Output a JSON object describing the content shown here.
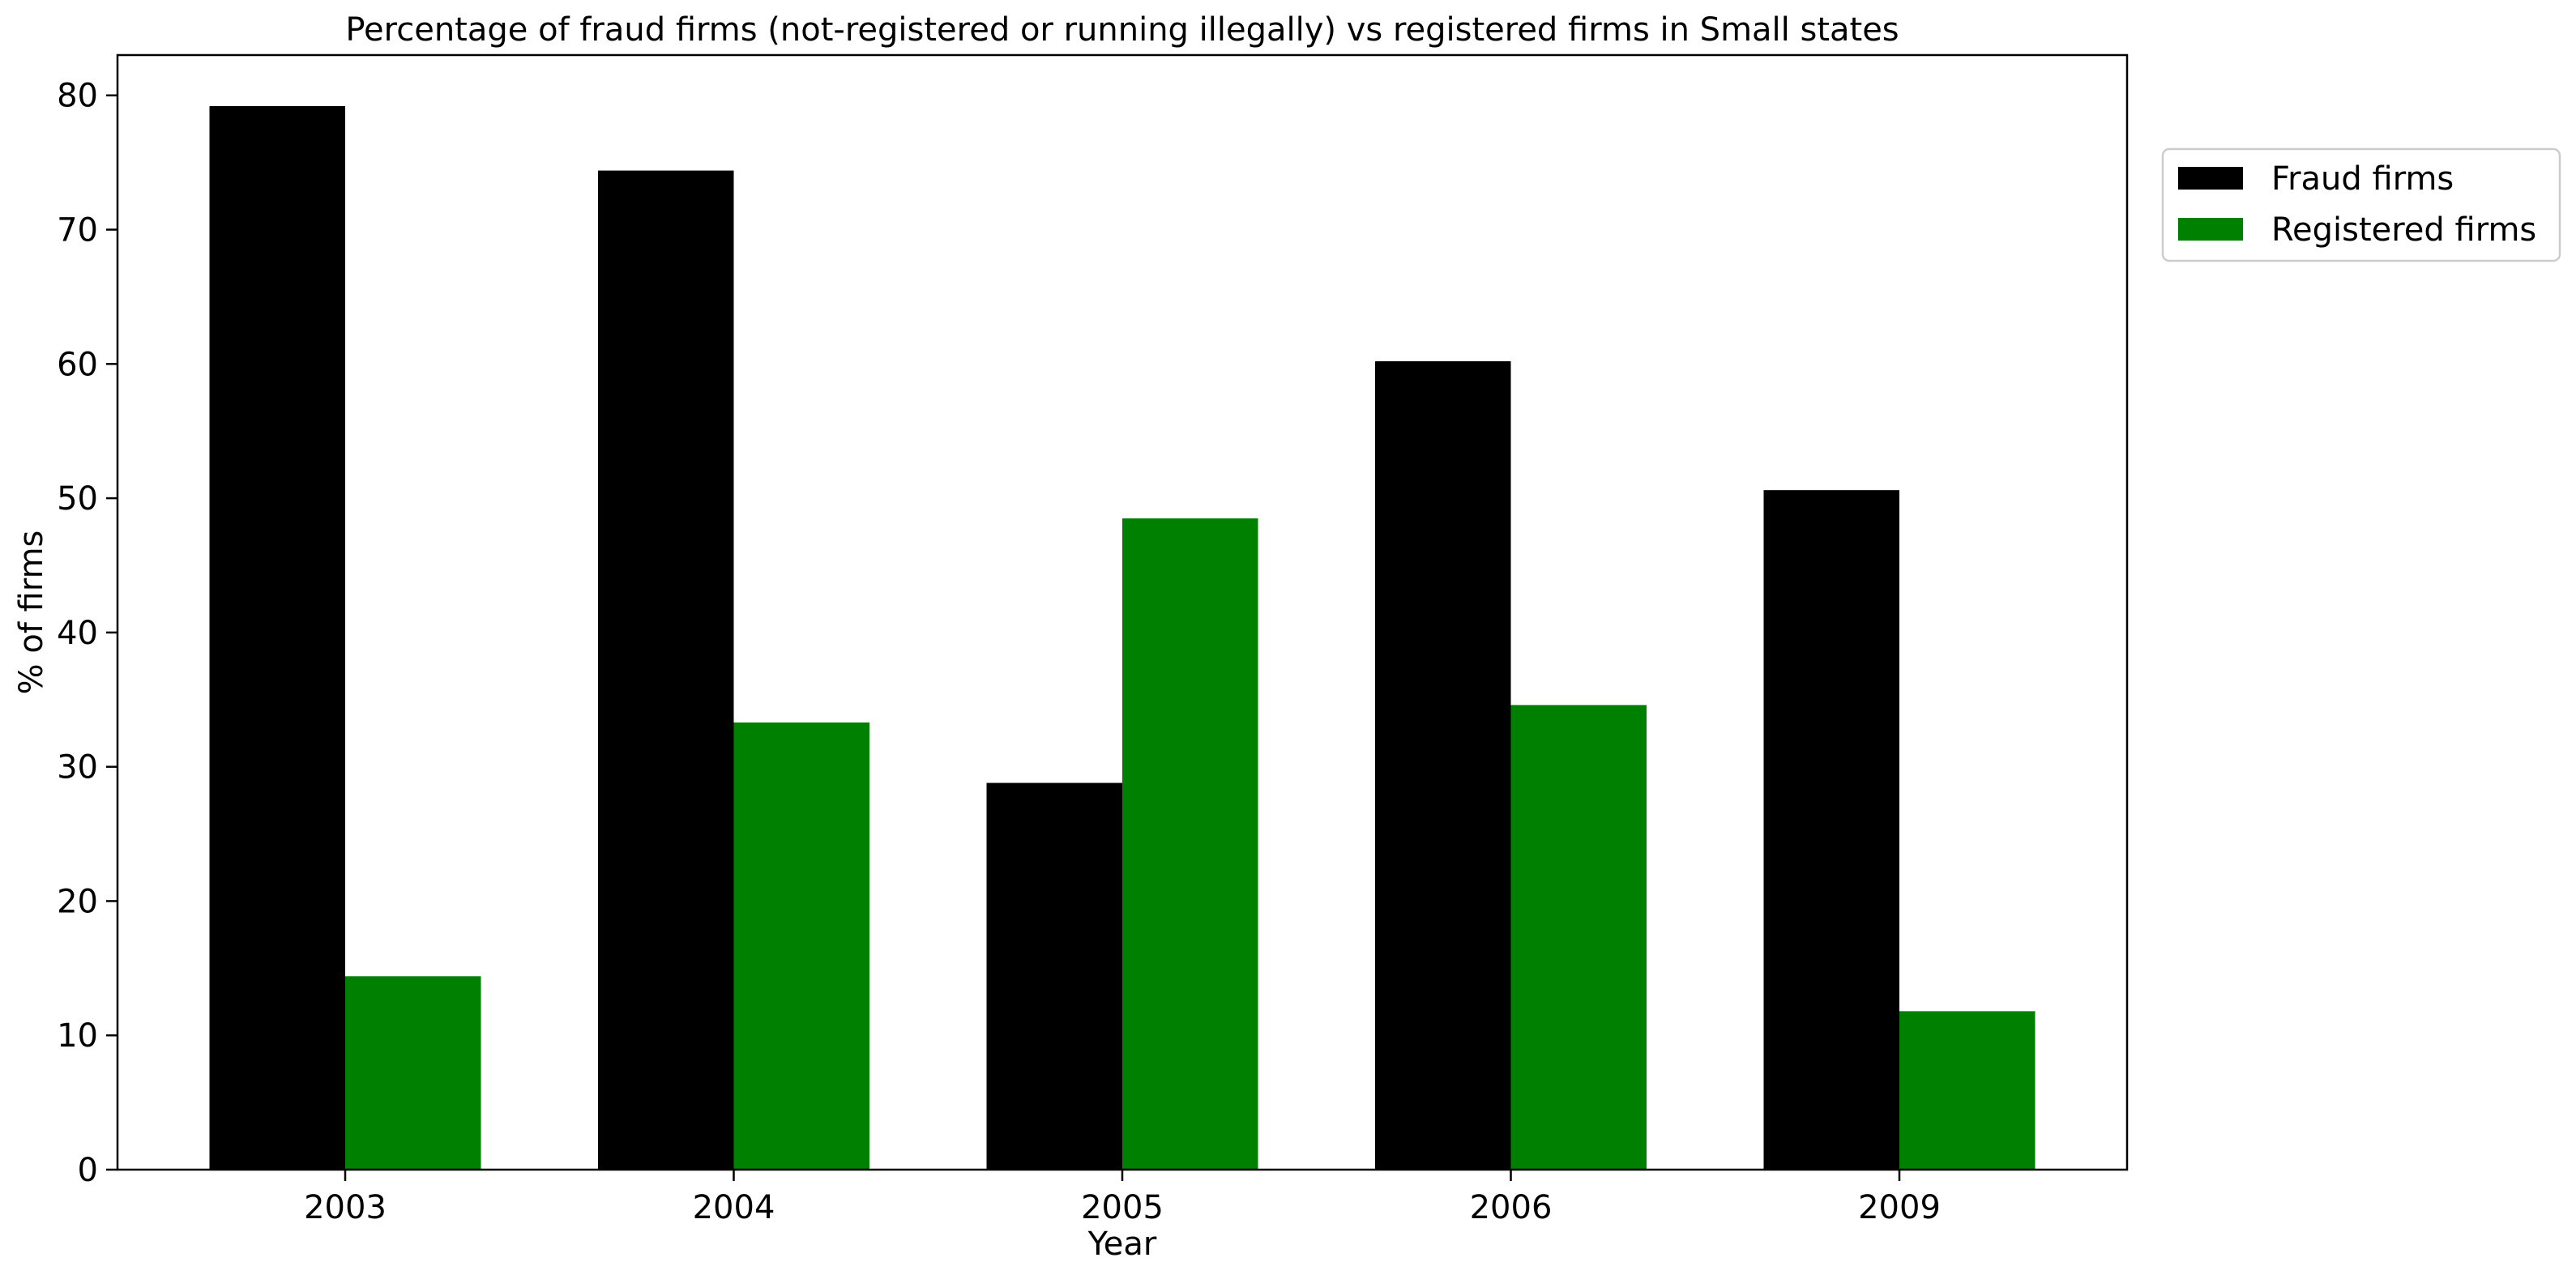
{
  "chart_data": {
    "type": "bar",
    "title": "Percentage of fraud firms (not-registered or running illegally) vs registered firms in Small states",
    "xlabel": "Year",
    "ylabel": "% of firms",
    "categories": [
      "2003",
      "2004",
      "2005",
      "2006",
      "2009"
    ],
    "series": [
      {
        "name": "Fraud firms",
        "color": "#000000",
        "values": [
          79.2,
          74.4,
          28.8,
          60.2,
          50.6
        ]
      },
      {
        "name": "Registered firms",
        "color": "#008000",
        "values": [
          14.4,
          33.3,
          48.5,
          34.6,
          11.8
        ]
      }
    ],
    "ylim": [
      0,
      83
    ],
    "yticks": [
      0,
      10,
      20,
      30,
      40,
      50,
      60,
      70,
      80
    ],
    "grid": false,
    "legend_position": "upper-right-outside"
  }
}
